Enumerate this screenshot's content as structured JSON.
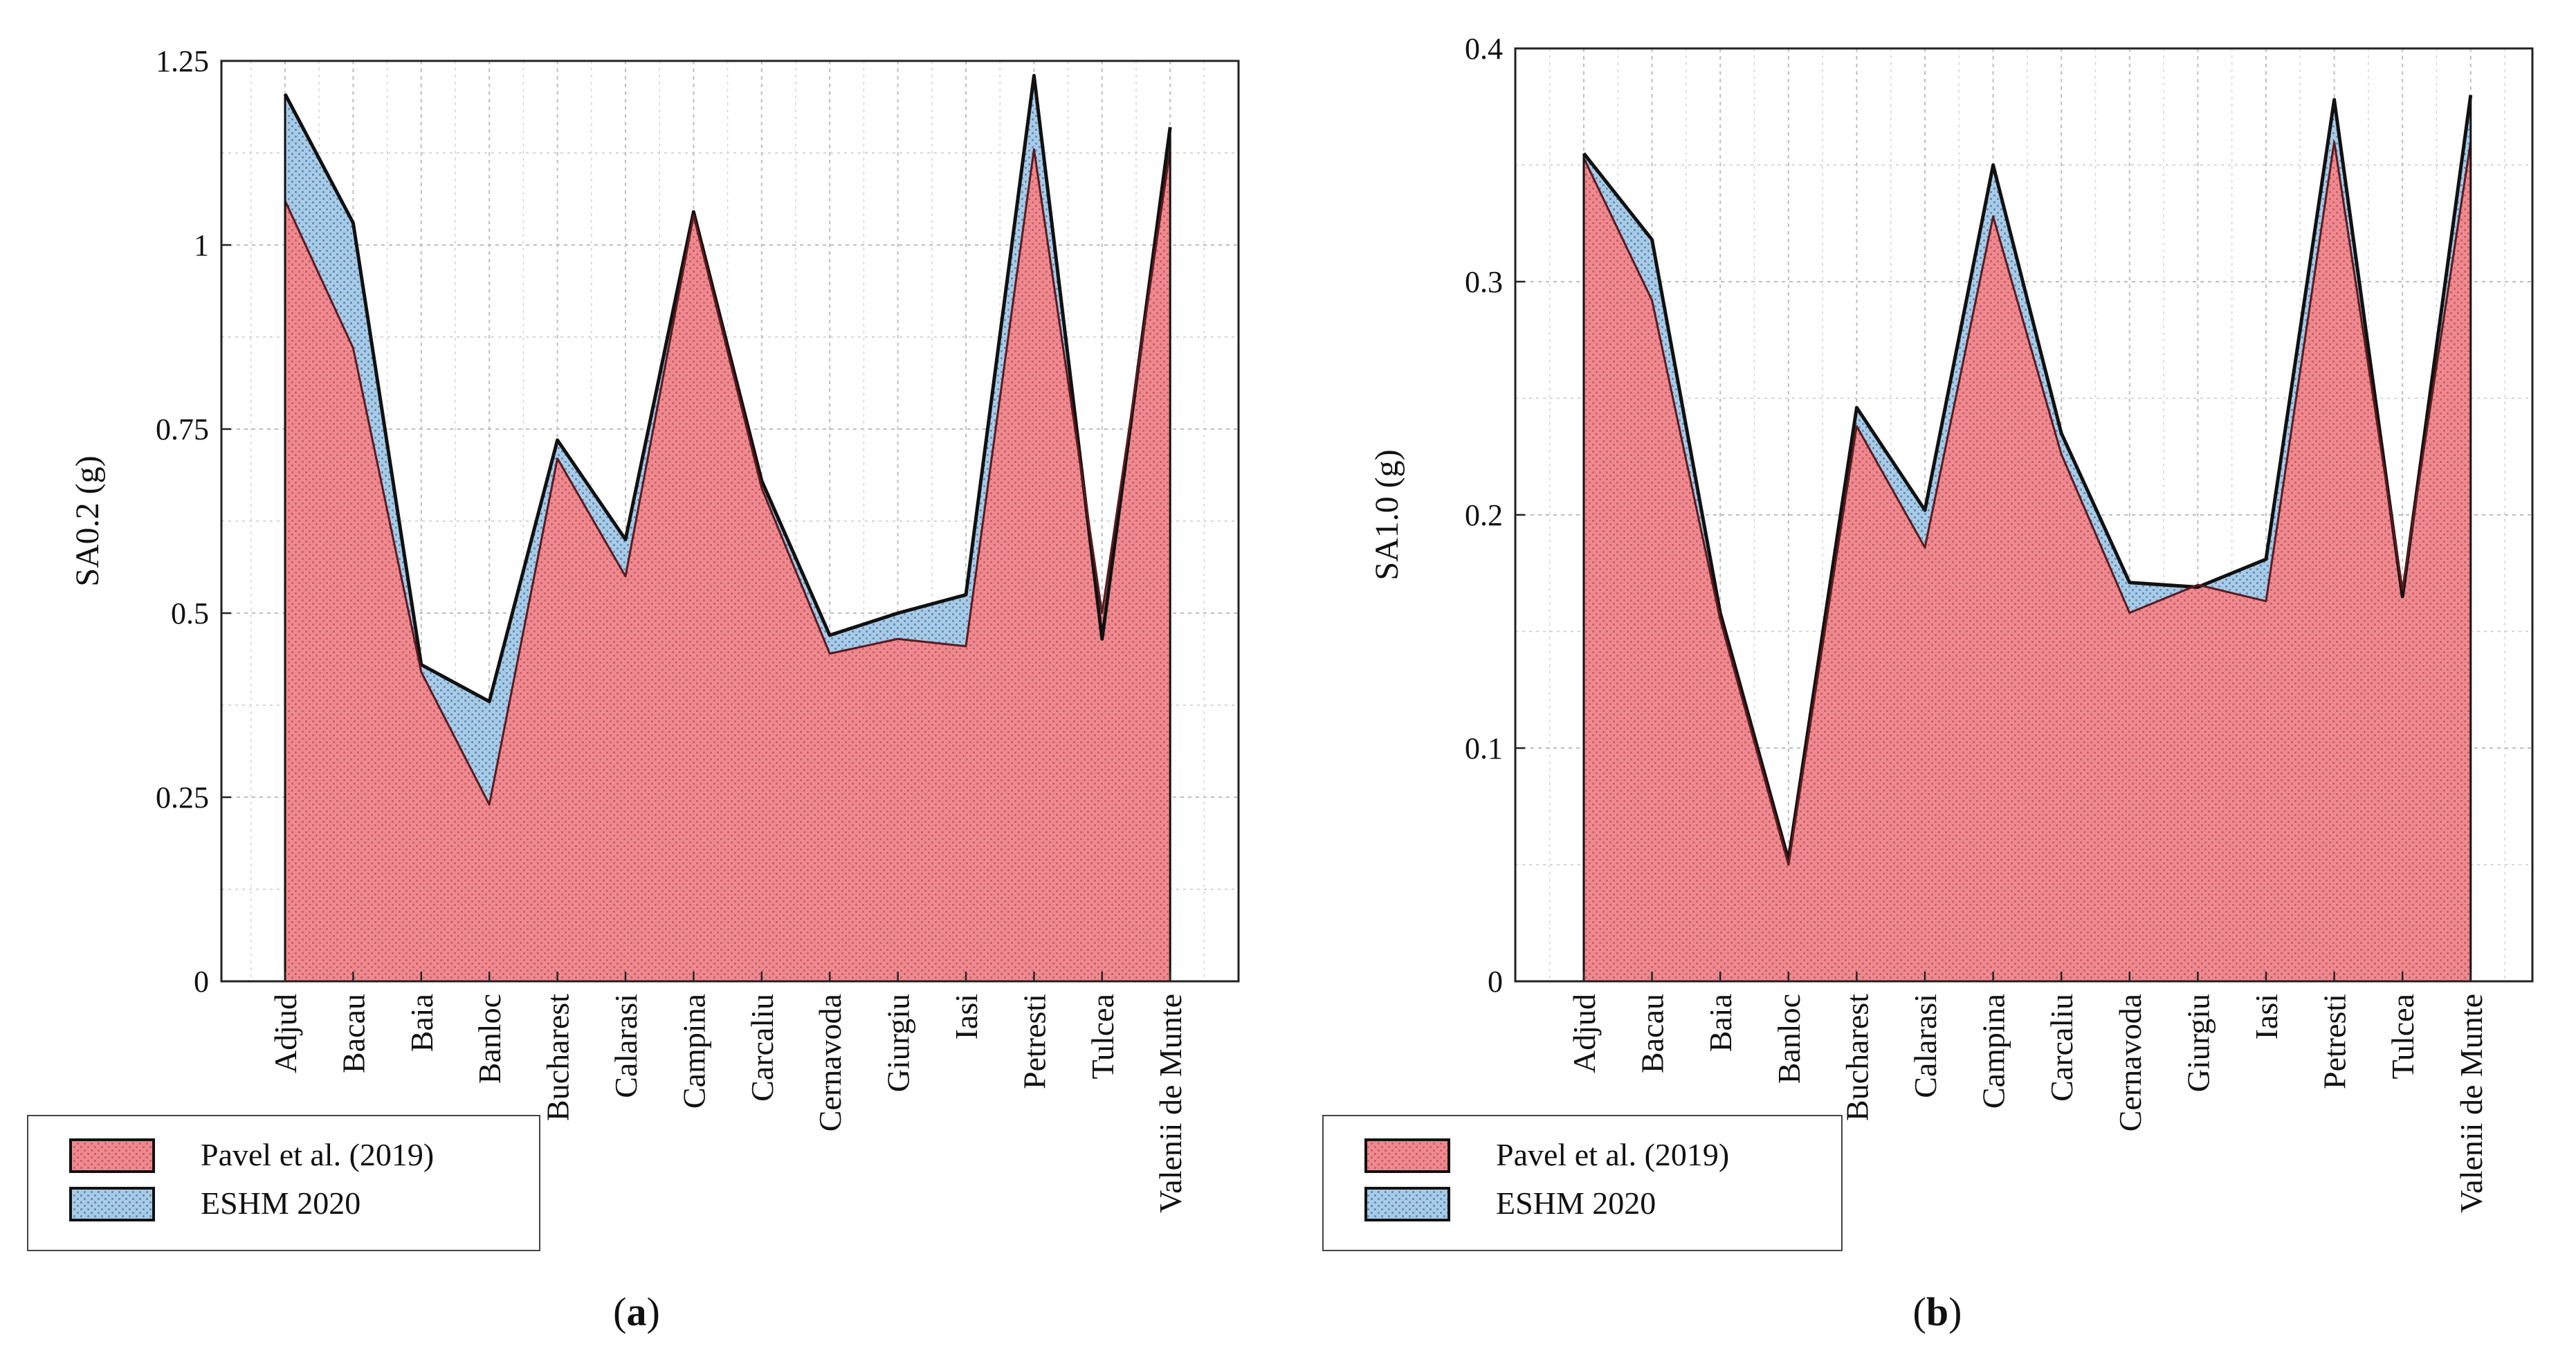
{
  "chart_data": [
    {
      "type": "area",
      "panel_label": "a",
      "ylabel": "SA0.2 (g)",
      "xlabel": "",
      "ylim": [
        0,
        1.25
      ],
      "yticks": [
        "0",
        "0.25",
        "0.5",
        "0.75",
        "1",
        "1.25"
      ],
      "ytick_values": [
        0,
        0.25,
        0.5,
        0.75,
        1,
        1.25
      ],
      "grid": true,
      "legend_position": "below-left",
      "categories": [
        "Adjud",
        "Bacau",
        "Baia",
        "Banloc",
        "Bucharest",
        "Calarasi",
        "Campina",
        "Carcaliu",
        "Cernavoda",
        "Giurgiu",
        "Iasi",
        "Petresti",
        "Tulcea",
        "Valenii de Munte"
      ],
      "series": [
        {
          "name": "Pavel et al. (2019)",
          "color": "#e8757c",
          "values": [
            1.06,
            0.86,
            0.42,
            0.24,
            0.71,
            0.55,
            1.04,
            0.67,
            0.445,
            0.465,
            0.455,
            1.13,
            0.5,
            1.13
          ]
        },
        {
          "name": "ESHM 2020",
          "color": "#7fb0d8",
          "values": [
            1.205,
            1.03,
            0.43,
            0.38,
            0.735,
            0.6,
            1.045,
            0.68,
            0.47,
            0.5,
            0.525,
            1.23,
            0.465,
            1.16
          ]
        }
      ]
    },
    {
      "type": "area",
      "panel_label": "b",
      "ylabel": "SA1.0 (g)",
      "xlabel": "",
      "ylim": [
        0,
        0.4
      ],
      "yticks": [
        "0",
        "0.1",
        "0.2",
        "0.3",
        "0.4"
      ],
      "ytick_values": [
        0,
        0.1,
        0.2,
        0.3,
        0.4
      ],
      "grid": true,
      "legend_position": "below-left",
      "categories": [
        "Adjud",
        "Bacau",
        "Baia",
        "Banloc",
        "Bucharest",
        "Calarasi",
        "Campina",
        "Carcaliu",
        "Cernavoda",
        "Giurgiu",
        "Iasi",
        "Petresti",
        "Tulcea",
        "Valenii de Munte"
      ],
      "series": [
        {
          "name": "Pavel et al. (2019)",
          "color": "#e8757c",
          "values": [
            0.353,
            0.292,
            0.155,
            0.05,
            0.238,
            0.186,
            0.328,
            0.226,
            0.158,
            0.17,
            0.163,
            0.36,
            0.168,
            0.36
          ]
        },
        {
          "name": "ESHM 2020",
          "color": "#7fb0d8",
          "values": [
            0.355,
            0.318,
            0.158,
            0.052,
            0.246,
            0.202,
            0.35,
            0.235,
            0.171,
            0.169,
            0.181,
            0.378,
            0.165,
            0.38
          ]
        }
      ]
    }
  ]
}
